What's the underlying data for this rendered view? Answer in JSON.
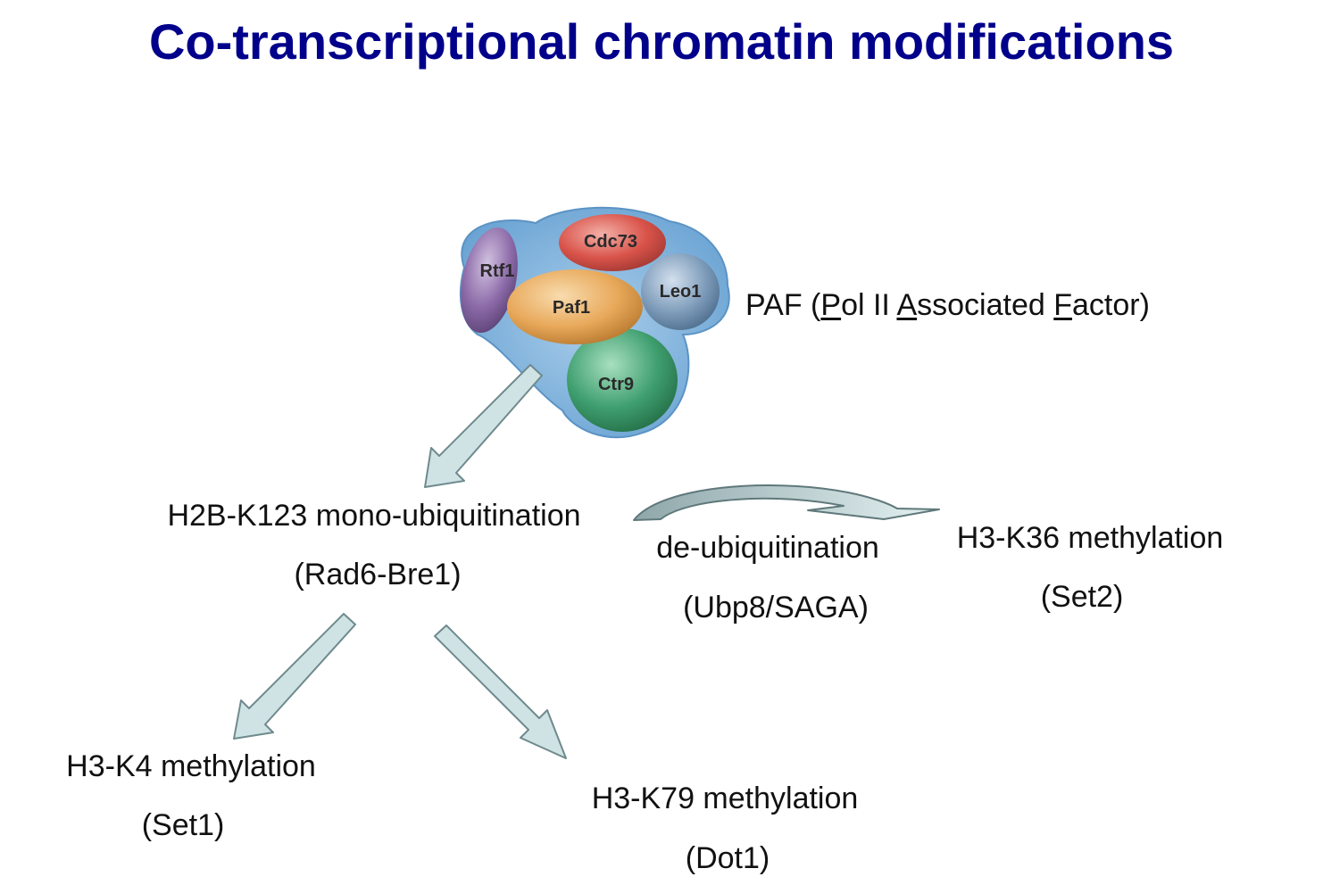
{
  "title": "Co-transcriptional chromatin modifications",
  "paf_complex": {
    "subunits": [
      "Cdc73",
      "Rtf1",
      "Paf1",
      "Leo1",
      "Ctr9"
    ],
    "label": {
      "prefix": "PAF (",
      "p": "P",
      "ol_ii": "ol II ",
      "a": "A",
      "ssociated": "ssociated ",
      "f": "F",
      "actor_suffix": "actor)"
    }
  },
  "nodes": {
    "h2b": {
      "line1": "H2B-K123 mono-ubiquitination",
      "line2": "(Rad6-Bre1)"
    },
    "deub": {
      "line1": "de-ubiquitination",
      "line2": "(Ubp8/SAGA)"
    },
    "h3k36": {
      "line1": "H3-K36 methylation",
      "line2": "(Set2)"
    },
    "h3k4": {
      "line1": "H3-K4 methylation",
      "line2": "(Set1)"
    },
    "h3k79": {
      "line1": "H3-K79 methylation",
      "line2": "(Dot1)"
    }
  },
  "colors": {
    "title": "#00008b",
    "arrow_fill": "#cfe3e5",
    "arrow_stroke": "#6f8a8d",
    "complex_halo": "#7ab0d9",
    "cdc73": "#d9534a",
    "rtf1": "#8c6aa8",
    "paf1": "#e8a85a",
    "leo1": "#7f9dbb",
    "ctr9": "#3f9f6f"
  }
}
